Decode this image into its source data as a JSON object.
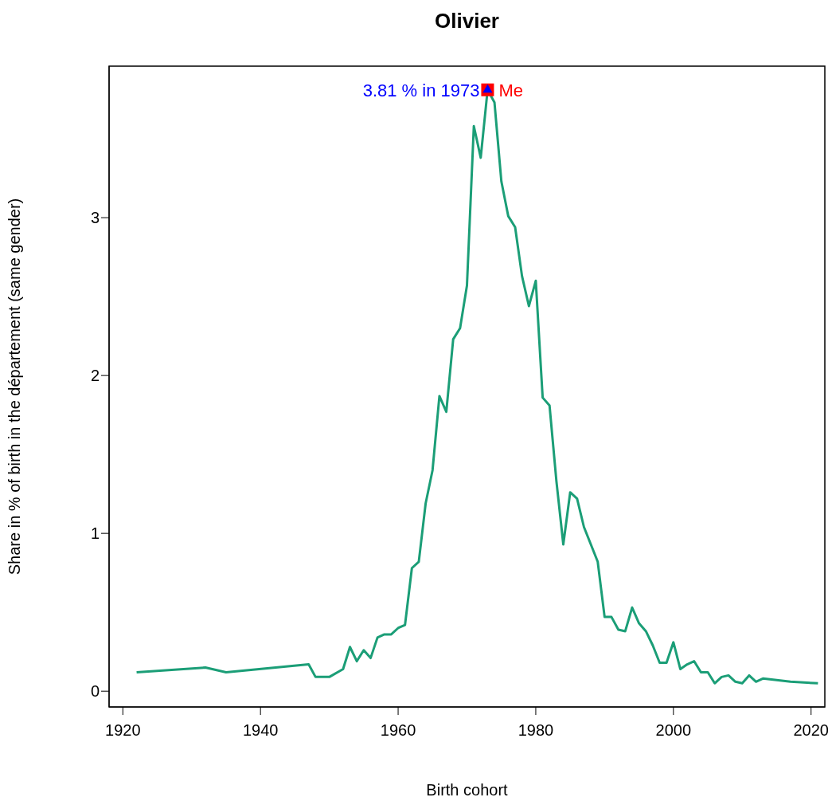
{
  "chart_data": {
    "type": "line",
    "title": "Olivier",
    "xlabel": "Birth cohort",
    "ylabel": "Share in % of birth in the département  (same gender)",
    "x": [
      1922,
      1932,
      1935,
      1947,
      1948,
      1950,
      1952,
      1953,
      1954,
      1955,
      1956,
      1957,
      1958,
      1959,
      1960,
      1961,
      1962,
      1963,
      1964,
      1965,
      1966,
      1967,
      1968,
      1969,
      1970,
      1971,
      1972,
      1973,
      1974,
      1975,
      1976,
      1977,
      1978,
      1979,
      1980,
      1981,
      1982,
      1983,
      1984,
      1985,
      1986,
      1987,
      1988,
      1989,
      1990,
      1991,
      1992,
      1993,
      1994,
      1995,
      1996,
      1997,
      1998,
      1999,
      2000,
      2001,
      2002,
      2003,
      2004,
      2005,
      2006,
      2007,
      2008,
      2009,
      2010,
      2011,
      2012,
      2013,
      2017,
      2021
    ],
    "series": [
      {
        "color": "#1b9e77",
        "marker": "none",
        "values": [
          0.12,
          0.15,
          0.12,
          0.17,
          0.09,
          0.09,
          0.14,
          0.28,
          0.19,
          0.26,
          0.21,
          0.34,
          0.36,
          0.36,
          0.4,
          0.42,
          0.78,
          0.82,
          1.19,
          1.4,
          1.87,
          1.77,
          2.23,
          2.3,
          2.57,
          3.58,
          3.38,
          3.81,
          3.73,
          3.23,
          3.01,
          2.94,
          2.63,
          2.44,
          2.6,
          1.86,
          1.81,
          1.33,
          0.93,
          1.26,
          1.22,
          1.04,
          0.93,
          0.82,
          0.47,
          0.47,
          0.39,
          0.38,
          0.53,
          0.43,
          0.38,
          0.29,
          0.18,
          0.18,
          0.31,
          0.14,
          0.17,
          0.19,
          0.12,
          0.12,
          0.05,
          0.09,
          0.1,
          0.06,
          0.05,
          0.1,
          0.06,
          0.08,
          0.06,
          0.05
        ]
      },
      {
        "type": "scatter",
        "color": "#ff0000",
        "marker": "square",
        "x": [
          1973
        ],
        "values": [
          3.81
        ]
      },
      {
        "type": "scatter",
        "color": "#0000ff",
        "marker": "triangle",
        "x": [
          1973
        ],
        "values": [
          3.81
        ]
      }
    ],
    "annotations": [
      {
        "text": "3.81 % in 1973",
        "x": 1973,
        "y": 3.81
      },
      {
        "text": "Me",
        "x": 1973,
        "y": 3.81
      }
    ],
    "xlim": [
      1918,
      2022
    ],
    "xticks": [
      1920,
      1940,
      1960,
      1980,
      2000,
      2020
    ],
    "ylim": [
      -0.1,
      3.96
    ],
    "yticks": [
      0,
      1,
      2,
      3
    ],
    "grid": false
  }
}
